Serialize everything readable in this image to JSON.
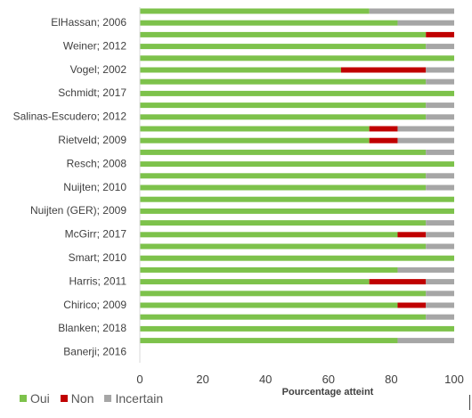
{
  "chart_data": {
    "type": "bar",
    "orientation": "horizontal",
    "stacked": true,
    "xlabel": "Pourcentage atteint",
    "xlim": [
      0,
      100
    ],
    "xticks": [
      0,
      20,
      40,
      60,
      80,
      100
    ],
    "grid": false,
    "legend_position": "bottom-left",
    "labeled_rows": [
      "ElHassan; 2006",
      "Weiner; 2012",
      "Vogel; 2002",
      "Schmidt; 2017",
      "Salinas-Escudero; 2012",
      "Rietveld; 2009",
      "Resch; 2008",
      "Nuijten; 2010",
      "Nuijten (GER); 2009",
      "McGirr; 2017",
      "Smart; 2010",
      "Harris; 2011",
      "Chirico; 2009",
      "Blanken; 2018",
      "Banerji; 2016"
    ],
    "series": [
      {
        "name": "Oui",
        "color": "#7DC24B",
        "values": [
          73,
          82,
          91,
          91,
          100,
          64,
          91,
          100,
          91,
          91,
          73,
          73,
          91,
          100,
          91,
          91,
          100,
          100,
          91,
          82,
          91,
          100,
          82,
          73,
          91,
          82,
          91,
          100,
          82
        ]
      },
      {
        "name": "Non",
        "color": "#C00000",
        "values": [
          0,
          0,
          9,
          0,
          0,
          27,
          0,
          0,
          0,
          0,
          9,
          9,
          0,
          0,
          0,
          0,
          0,
          0,
          0,
          9,
          0,
          0,
          0,
          18,
          0,
          9,
          0,
          0,
          0
        ]
      },
      {
        "name": "Incertain",
        "color": "#A6A6A6",
        "values": [
          27,
          18,
          0,
          9,
          0,
          9,
          9,
          0,
          9,
          9,
          18,
          18,
          9,
          0,
          9,
          9,
          0,
          0,
          9,
          9,
          9,
          0,
          18,
          9,
          9,
          9,
          9,
          0,
          18
        ]
      }
    ]
  }
}
